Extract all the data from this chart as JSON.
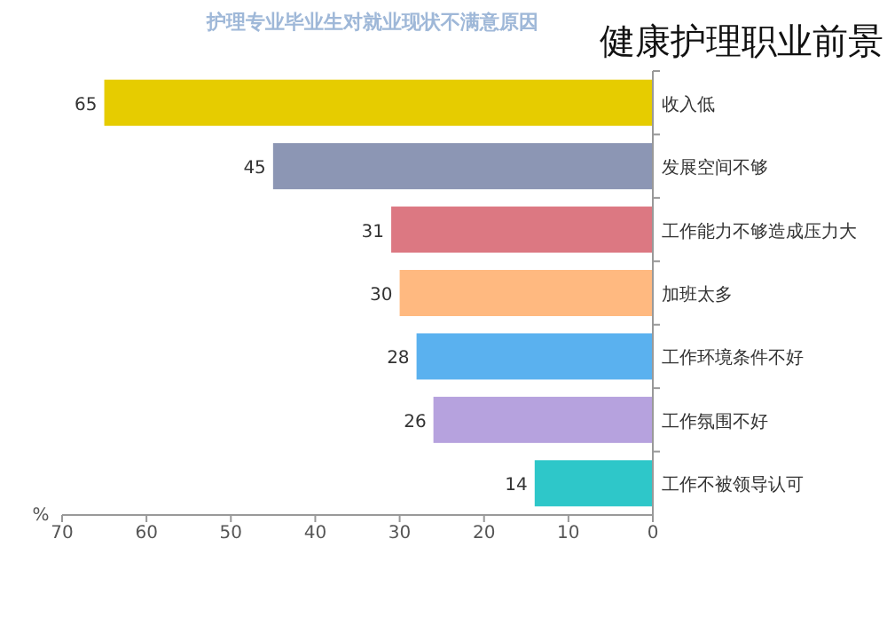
{
  "chart_data": {
    "type": "bar",
    "orientation": "horizontal",
    "title": "护理专业毕业生对就业现状不满意原因",
    "annotations": [
      "健康护理职业前景"
    ],
    "xlabel": "%",
    "categories": [
      "收入低",
      "发展空间不够",
      "工作能力不够造成压力大",
      "加班太多",
      "工作环境条件不好",
      "工作氛围不好",
      "工作不被领导认可"
    ],
    "values": [
      65,
      45,
      31,
      30,
      28,
      26,
      14
    ],
    "colors": [
      "#e6cc00",
      "#8c96b4",
      "#dc7882",
      "#ffb980",
      "#5ab1ef",
      "#b6a2de",
      "#2ec7c9"
    ],
    "xlim": [
      70,
      0
    ],
    "xticks": [
      70,
      60,
      50,
      40,
      30,
      20,
      10,
      0
    ],
    "data_labels": true,
    "grid": false
  }
}
